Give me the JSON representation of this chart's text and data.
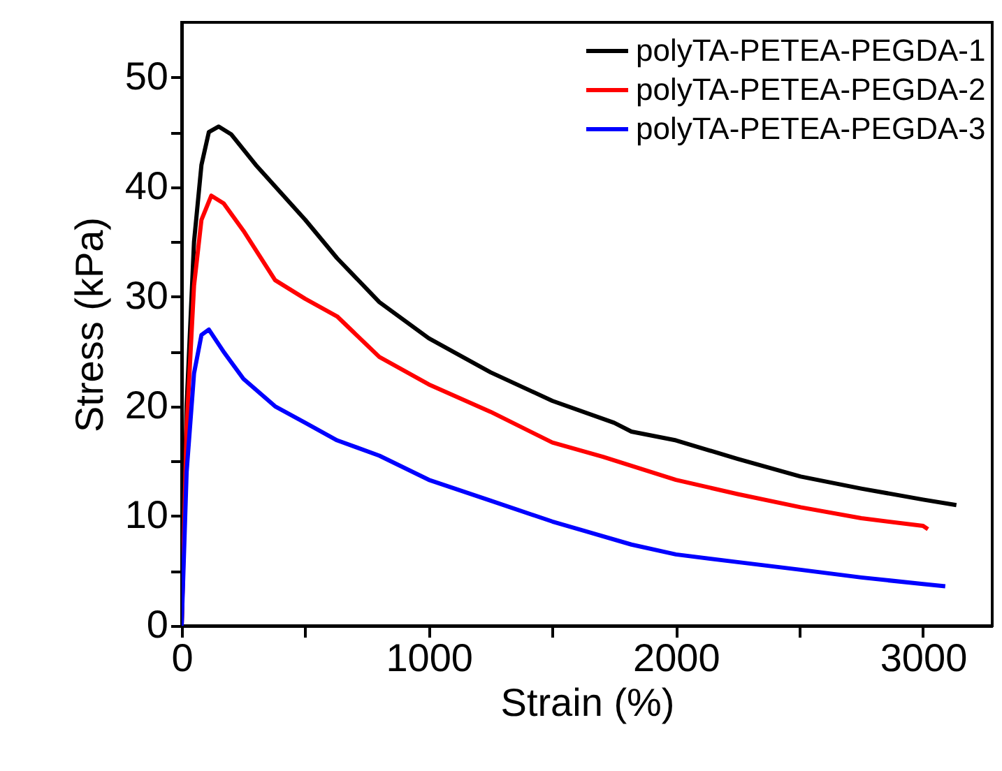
{
  "chart_data": {
    "type": "line",
    "xlabel": "Strain (%)",
    "ylabel": "Stress (kPa)",
    "xlim": [
      0,
      3280
    ],
    "ylim": [
      0,
      55
    ],
    "xticks": [
      0,
      {
        "value": 500,
        "label": null
      },
      1000,
      {
        "value": 1500,
        "label": null
      },
      2000,
      {
        "value": 2500,
        "label": null
      },
      3000
    ],
    "yticks": [
      0,
      {
        "value": 5,
        "label": null
      },
      10,
      {
        "value": 15,
        "label": null
      },
      20,
      {
        "value": 25,
        "label": null
      },
      30,
      {
        "value": 35,
        "label": null
      },
      40,
      {
        "value": 45,
        "label": null
      },
      50
    ],
    "grid": false,
    "legend": "top right",
    "marker": "none",
    "line_style": "solid",
    "series": [
      {
        "name": "polyTA-PETEA-PEGDA-1",
        "color": "#000000",
        "x": [
          0,
          20,
          50,
          80,
          110,
          150,
          200,
          300,
          400,
          500,
          629,
          800,
          1000,
          1250,
          1500,
          1750,
          1820,
          2000,
          2250,
          2505,
          2750,
          3000,
          3135
        ],
        "values": [
          0,
          20,
          35,
          42,
          45,
          45.5,
          44.8,
          42,
          39.5,
          37,
          33.5,
          29.5,
          26.2,
          23.1,
          20.5,
          18.5,
          17.7,
          16.9,
          15.2,
          13.6,
          12.5,
          11.5,
          11
        ]
      },
      {
        "name": "polyTA-PETEA-PEGDA-2",
        "color": "#ff0000",
        "x": [
          0,
          20,
          50,
          80,
          120,
          170,
          250,
          378,
          500,
          629,
          800,
          1000,
          1250,
          1500,
          1705,
          2000,
          2250,
          2505,
          2750,
          3000,
          3020
        ],
        "values": [
          0,
          18,
          31,
          37,
          39.2,
          38.5,
          36,
          31.5,
          29.8,
          28.2,
          24.5,
          22,
          19.5,
          16.7,
          15.4,
          13.3,
          12,
          10.8,
          9.8,
          9.1,
          8.8
        ]
      },
      {
        "name": "polyTA-PETEA-PEGDA-3",
        "color": "#0000ff",
        "x": [
          0,
          20,
          50,
          80,
          110,
          172,
          250,
          378,
          500,
          629,
          800,
          1000,
          1250,
          1500,
          1820,
          2000,
          2250,
          2505,
          2750,
          3000,
          3090
        ],
        "values": [
          0,
          14,
          23,
          26.5,
          27,
          24.9,
          22.5,
          20,
          18.5,
          16.9,
          15.5,
          13.3,
          11.4,
          9.5,
          7.4,
          6.5,
          5.8,
          5.1,
          4.4,
          3.8,
          3.6
        ]
      }
    ]
  }
}
